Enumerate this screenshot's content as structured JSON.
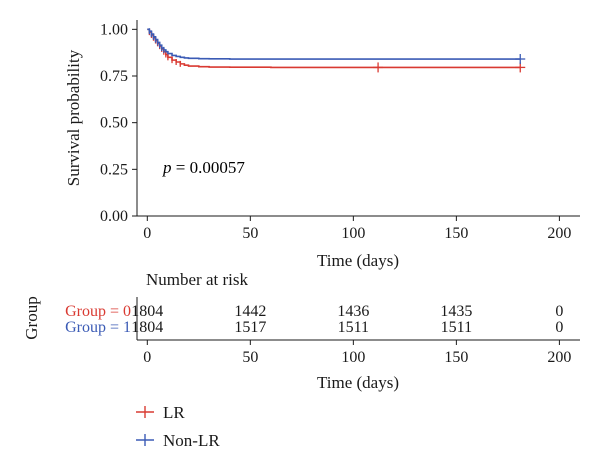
{
  "chart_data": [
    {
      "type": "line",
      "subtype": "kaplan-meier",
      "ylabel": "Survival probability",
      "xlabel": "Time (days)",
      "xlim": [
        -5,
        210
      ],
      "ylim": [
        0,
        1.05
      ],
      "x_ticks": [
        0,
        50,
        100,
        150,
        200
      ],
      "y_ticks": [
        "0.00",
        "0.25",
        "0.50",
        "0.75",
        "1.00"
      ],
      "annotation_prefix": "p",
      "annotation_value": " = 0.00057",
      "grid": false,
      "series": [
        {
          "name": "LR",
          "color": "#d93a32",
          "x": [
            0,
            1,
            2,
            3,
            4,
            5,
            6,
            7,
            8,
            9,
            10,
            12,
            14,
            16,
            18,
            20,
            25,
            30,
            40,
            60,
            80,
            112,
            150,
            181
          ],
          "y": [
            1.0,
            0.985,
            0.97,
            0.955,
            0.94,
            0.925,
            0.91,
            0.895,
            0.88,
            0.865,
            0.85,
            0.835,
            0.825,
            0.815,
            0.808,
            0.803,
            0.8,
            0.798,
            0.797,
            0.796,
            0.796,
            0.796,
            0.796,
            0.796
          ],
          "censored_x": [
            1,
            2,
            3,
            4,
            5,
            6,
            7,
            8,
            9,
            10,
            12,
            14,
            16,
            112,
            181
          ]
        },
        {
          "name": "Non-LR",
          "color": "#3b5bb5",
          "x": [
            0,
            1,
            2,
            3,
            4,
            5,
            6,
            7,
            8,
            9,
            10,
            12,
            14,
            16,
            18,
            20,
            25,
            30,
            40,
            60,
            80,
            112,
            150,
            181
          ],
          "y": [
            1.0,
            0.99,
            0.975,
            0.96,
            0.945,
            0.93,
            0.915,
            0.9,
            0.89,
            0.88,
            0.87,
            0.86,
            0.855,
            0.85,
            0.847,
            0.845,
            0.843,
            0.842,
            0.841,
            0.841,
            0.841,
            0.841,
            0.841,
            0.841
          ],
          "censored_x": [
            1,
            2,
            3,
            4,
            5,
            6,
            7,
            8,
            181
          ]
        }
      ]
    },
    {
      "type": "table",
      "title": "Number at risk",
      "ylabel": "Group",
      "xlabel": "Time (days)",
      "xlim": [
        -5,
        210
      ],
      "x_ticks": [
        0,
        50,
        100,
        150,
        200
      ],
      "rows": [
        {
          "label": "Group = 0",
          "color": "#d93a32",
          "values": [
            "1804",
            "1442",
            "1436",
            "1435",
            "0"
          ]
        },
        {
          "label": "Group = 1",
          "color": "#3b5bb5",
          "values": [
            "1804",
            "1517",
            "1511",
            "1511",
            "0"
          ]
        }
      ]
    }
  ]
}
